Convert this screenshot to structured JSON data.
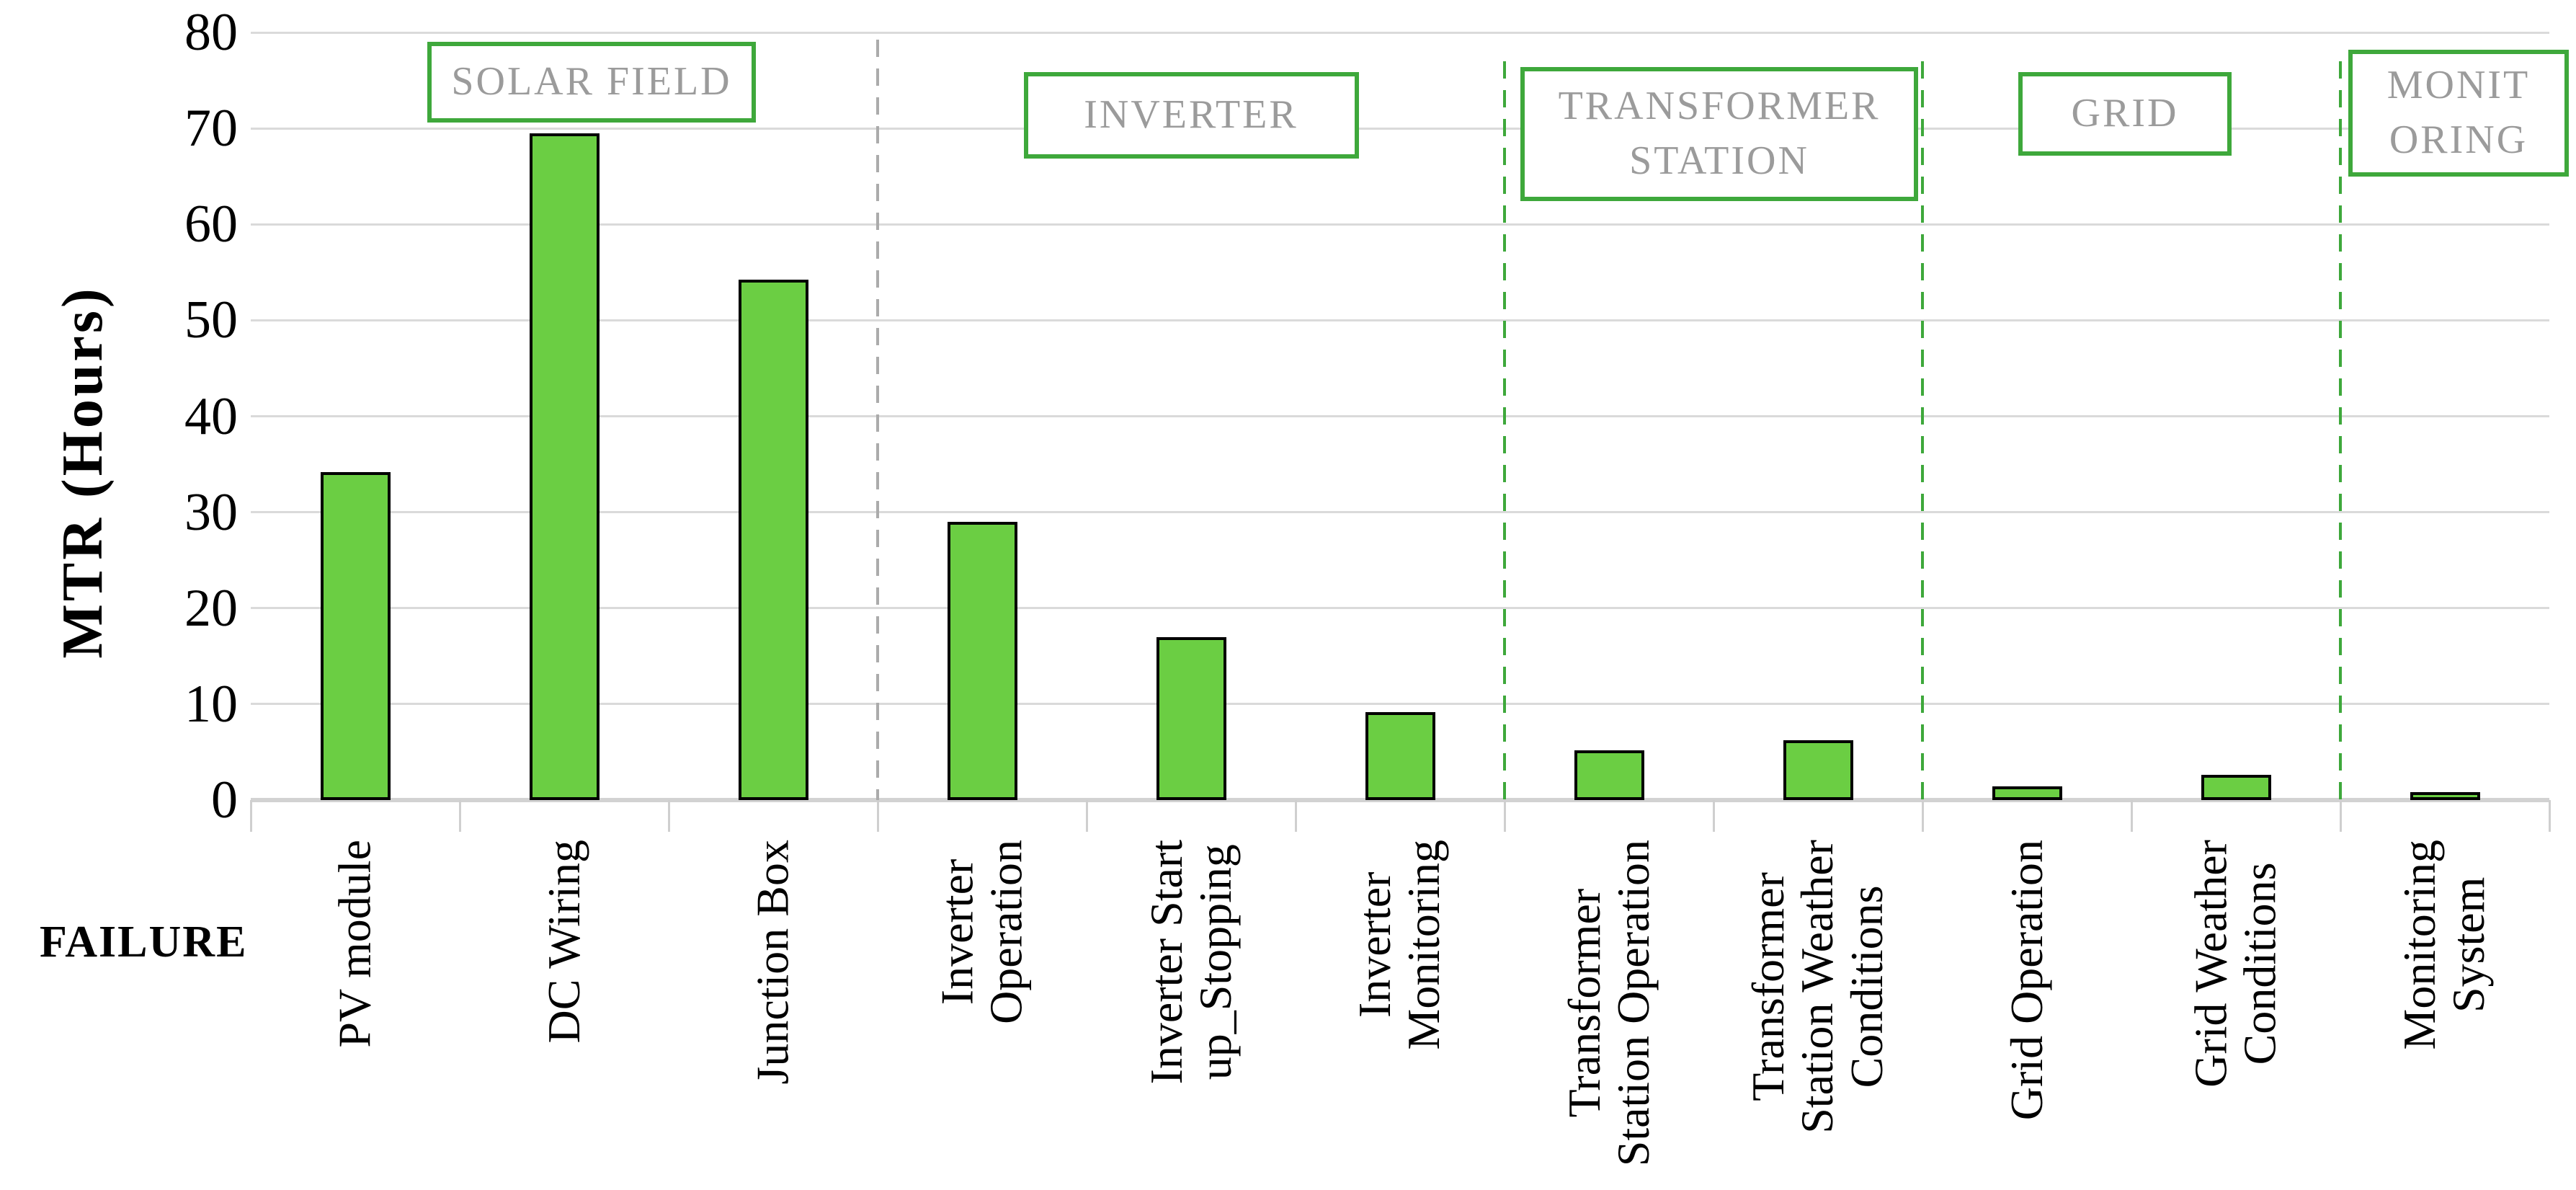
{
  "chart_data": {
    "type": "bar",
    "title": "",
    "xlabel": "FAILURE",
    "ylabel": "MTR (Hours)",
    "ylim": [
      0,
      80
    ],
    "yticks": [
      0,
      10,
      20,
      30,
      40,
      50,
      60,
      70,
      80
    ],
    "grid": "horizontal",
    "legend": "none",
    "bar_color": "#6BCE43",
    "bar_border_color": "#000000",
    "group_box_border_color": "#3EA83B",
    "group_label_color": "#9B9B9B",
    "categories": [
      "PV module",
      "DC Wiring",
      "Junction Box",
      "Inverter Operation",
      "Inverter Start up_Stopping",
      "Inverter Monitoring",
      "Transformer Station Operation",
      "Transformer Station Weather Conditions",
      "Grid Operation",
      "Grid Weather Conditions",
      "Monitoring System"
    ],
    "category_label_lines": [
      [
        "PV module"
      ],
      [
        "DC Wiring"
      ],
      [
        "Junction Box"
      ],
      [
        "Inverter",
        "Operation"
      ],
      [
        "Inverter Start",
        "up_Stopping"
      ],
      [
        "Inverter",
        "Monitoring"
      ],
      [
        "Transformer",
        "Station Operation"
      ],
      [
        "Transformer",
        "Station Weather",
        "Conditions"
      ],
      [
        "Grid Operation"
      ],
      [
        "Grid Weather",
        "Conditions"
      ],
      [
        "Monitoring",
        "System"
      ]
    ],
    "values": [
      34.2,
      69.5,
      54.2,
      29,
      17,
      9.2,
      5.2,
      6.2,
      1.4,
      2.6,
      0.8
    ],
    "groups": [
      {
        "label_lines": [
          "SOLAR FIELD"
        ],
        "from": 1,
        "to": 3
      },
      {
        "label_lines": [
          "INVERTER"
        ],
        "from": 4,
        "to": 6
      },
      {
        "label_lines": [
          "TRANSFORMER",
          "STATION"
        ],
        "from": 7,
        "to": 8
      },
      {
        "label_lines": [
          "GRID"
        ],
        "from": 9,
        "to": 10
      },
      {
        "label_lines": [
          "MONIT",
          "ORING"
        ],
        "from": 11,
        "to": 11
      }
    ],
    "separators": [
      {
        "after_category": 3,
        "color": "#ABABAB",
        "style": "dashed"
      },
      {
        "after_category": 6,
        "color": "#3EA83B",
        "style": "dashed"
      },
      {
        "after_category": 8,
        "color": "#3EA83B",
        "style": "dashed"
      },
      {
        "after_category": 10,
        "color": "#3EA83B",
        "style": "dashed"
      }
    ]
  }
}
